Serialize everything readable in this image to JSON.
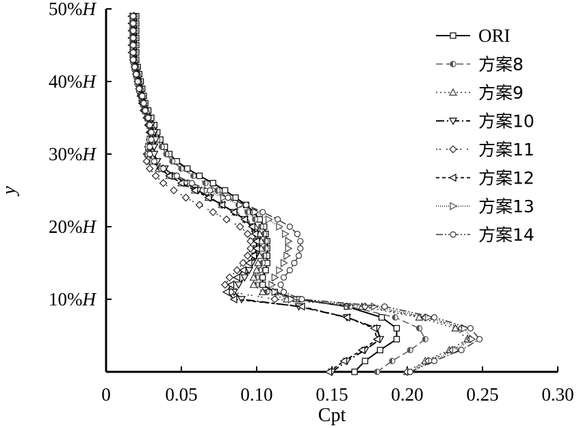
{
  "chart_data": {
    "type": "line",
    "title": "",
    "xlabel": "Cpt",
    "ylabel": "y",
    "xlim": [
      0,
      0.3
    ],
    "ylim": [
      0,
      50
    ],
    "x_ticks": [
      {
        "value": 0,
        "label": "0"
      },
      {
        "value": 0.05,
        "label": "0.05"
      },
      {
        "value": 0.1,
        "label": "0.10"
      },
      {
        "value": 0.15,
        "label": "0.15"
      },
      {
        "value": 0.2,
        "label": "0.20"
      },
      {
        "value": 0.25,
        "label": "0.25"
      },
      {
        "value": 0.3,
        "label": "0.30"
      }
    ],
    "y_ticks": [
      {
        "value": 10,
        "label": "10%H"
      },
      {
        "value": 20,
        "label": "20%H"
      },
      {
        "value": 30,
        "label": "30%H"
      },
      {
        "value": 40,
        "label": "40%H"
      },
      {
        "value": 50,
        "label": "50%H"
      }
    ],
    "legend_position": "right",
    "grid": false,
    "y": [
      0,
      1.5,
      3,
      4.5,
      6,
      7.5,
      9,
      10,
      11,
      12,
      13,
      14,
      15,
      16,
      17,
      18,
      19,
      20,
      21,
      22,
      23,
      24,
      25,
      26,
      27,
      28,
      29,
      30,
      31,
      32,
      33,
      34,
      35,
      36,
      37,
      38,
      39,
      40,
      41,
      42,
      43,
      44,
      45,
      46,
      47,
      48,
      49
    ],
    "series": [
      {
        "name": "ORI",
        "dash": "",
        "marker": "square",
        "color": "#000000",
        "width": 2.0,
        "values": [
          0.165,
          0.172,
          0.182,
          0.193,
          0.193,
          0.183,
          0.16,
          0.128,
          0.112,
          0.104,
          0.104,
          0.106,
          0.107,
          0.107,
          0.107,
          0.107,
          0.106,
          0.105,
          0.102,
          0.098,
          0.093,
          0.086,
          0.079,
          0.071,
          0.062,
          0.054,
          0.047,
          0.042,
          0.039,
          0.036,
          0.034,
          0.032,
          0.03,
          0.028,
          0.026,
          0.025,
          0.024,
          0.023,
          0.022,
          0.021,
          0.02,
          0.02,
          0.02,
          0.02,
          0.02,
          0.02,
          0.02
        ]
      },
      {
        "name": "方案8",
        "dash": "10,5",
        "marker": "circle-half",
        "color": "#555555",
        "width": 1.5,
        "values": [
          0.18,
          0.19,
          0.202,
          0.212,
          0.208,
          0.192,
          0.162,
          0.125,
          0.107,
          0.1,
          0.1,
          0.102,
          0.104,
          0.105,
          0.106,
          0.106,
          0.105,
          0.103,
          0.099,
          0.094,
          0.088,
          0.081,
          0.074,
          0.066,
          0.058,
          0.05,
          0.044,
          0.04,
          0.037,
          0.034,
          0.032,
          0.03,
          0.028,
          0.026,
          0.025,
          0.024,
          0.023,
          0.022,
          0.021,
          0.02,
          0.019,
          0.019,
          0.019,
          0.019,
          0.019,
          0.019,
          0.019
        ]
      },
      {
        "name": "方案9",
        "dash": "2,4",
        "marker": "triangle-up",
        "color": "#333333",
        "width": 1.5,
        "values": [
          0.2,
          0.212,
          0.228,
          0.24,
          0.232,
          0.208,
          0.17,
          0.12,
          0.104,
          0.098,
          0.098,
          0.1,
          0.101,
          0.102,
          0.103,
          0.103,
          0.102,
          0.099,
          0.093,
          0.086,
          0.077,
          0.068,
          0.059,
          0.05,
          0.042,
          0.035,
          0.03,
          0.028,
          0.029,
          0.031,
          0.031,
          0.03,
          0.028,
          0.027,
          0.025,
          0.024,
          0.023,
          0.022,
          0.021,
          0.02,
          0.019,
          0.018,
          0.018,
          0.018,
          0.018,
          0.018,
          0.018
        ]
      },
      {
        "name": "方案10",
        "dash": "12,4,2,4",
        "marker": "triangle-down",
        "color": "#000000",
        "width": 2.0,
        "values": [
          0.15,
          0.16,
          0.172,
          0.182,
          0.18,
          0.16,
          0.128,
          0.09,
          0.085,
          0.088,
          0.092,
          0.095,
          0.097,
          0.099,
          0.1,
          0.1,
          0.099,
          0.097,
          0.092,
          0.085,
          0.077,
          0.069,
          0.061,
          0.053,
          0.045,
          0.039,
          0.034,
          0.032,
          0.032,
          0.033,
          0.032,
          0.03,
          0.028,
          0.026,
          0.024,
          0.023,
          0.022,
          0.021,
          0.02,
          0.019,
          0.018,
          0.018,
          0.018,
          0.018,
          0.018,
          0.018,
          0.018
        ]
      },
      {
        "name": "方案11",
        "dash": "2,3,2,8",
        "marker": "diamond",
        "color": "#222222",
        "width": 1.5,
        "values": [
          0.2,
          0.214,
          0.23,
          0.242,
          0.236,
          0.212,
          0.172,
          0.112,
          0.083,
          0.079,
          0.082,
          0.087,
          0.091,
          0.094,
          0.096,
          0.096,
          0.094,
          0.089,
          0.08,
          0.071,
          0.062,
          0.053,
          0.045,
          0.038,
          0.033,
          0.029,
          0.027,
          0.027,
          0.028,
          0.029,
          0.029,
          0.028,
          0.027,
          0.025,
          0.024,
          0.023,
          0.022,
          0.021,
          0.02,
          0.019,
          0.018,
          0.018,
          0.018,
          0.018,
          0.018,
          0.018,
          0.018
        ]
      },
      {
        "name": "方案12",
        "dash": "5,4",
        "marker": "triangle-left",
        "color": "#000000",
        "width": 1.8,
        "values": [
          0.148,
          0.158,
          0.17,
          0.18,
          0.178,
          0.16,
          0.13,
          0.085,
          0.08,
          0.083,
          0.087,
          0.091,
          0.095,
          0.098,
          0.1,
          0.1,
          0.099,
          0.097,
          0.092,
          0.085,
          0.077,
          0.068,
          0.059,
          0.05,
          0.042,
          0.036,
          0.031,
          0.028,
          0.028,
          0.029,
          0.029,
          0.028,
          0.027,
          0.025,
          0.024,
          0.023,
          0.022,
          0.021,
          0.02,
          0.019,
          0.018,
          0.017,
          0.017,
          0.017,
          0.017,
          0.017,
          0.017
        ]
      },
      {
        "name": "方案13",
        "dash": "1,2",
        "marker": "triangle-right",
        "color": "#444444",
        "width": 2.0,
        "values": [
          0.202,
          0.216,
          0.232,
          0.243,
          0.238,
          0.214,
          0.178,
          0.123,
          0.112,
          0.11,
          0.112,
          0.115,
          0.118,
          0.12,
          0.121,
          0.121,
          0.119,
          0.115,
          0.108,
          0.099,
          0.089,
          0.078,
          0.067,
          0.056,
          0.046,
          0.037,
          0.031,
          0.028,
          0.028,
          0.029,
          0.03,
          0.029,
          0.028,
          0.026,
          0.025,
          0.024,
          0.022,
          0.021,
          0.02,
          0.019,
          0.018,
          0.018,
          0.018,
          0.018,
          0.018,
          0.018,
          0.018
        ]
      },
      {
        "name": "方案14",
        "dash": "10,3,2,3,2,3",
        "marker": "circle",
        "color": "#333333",
        "width": 1.5,
        "values": [
          0.202,
          0.218,
          0.236,
          0.248,
          0.242,
          0.218,
          0.185,
          0.13,
          0.118,
          0.116,
          0.118,
          0.122,
          0.125,
          0.128,
          0.129,
          0.129,
          0.127,
          0.122,
          0.114,
          0.104,
          0.093,
          0.081,
          0.069,
          0.057,
          0.047,
          0.038,
          0.032,
          0.029,
          0.029,
          0.03,
          0.03,
          0.029,
          0.028,
          0.026,
          0.025,
          0.024,
          0.022,
          0.021,
          0.02,
          0.019,
          0.018,
          0.018,
          0.018,
          0.018,
          0.018,
          0.018,
          0.018
        ]
      }
    ]
  }
}
